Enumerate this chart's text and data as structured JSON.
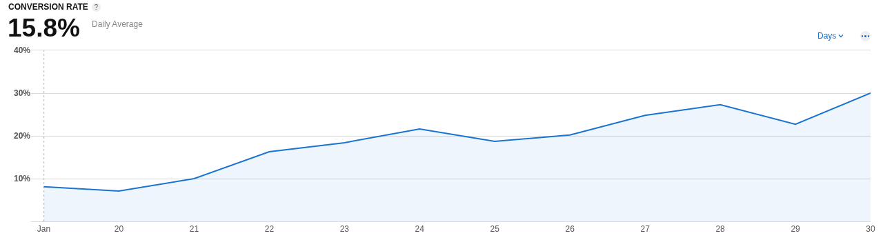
{
  "chart_data": {
    "type": "area",
    "title": "CONVERSION RATE",
    "annotations": [
      "15.8%",
      "Daily Average",
      "Days",
      "?"
    ],
    "categories": [
      "Jan",
      "20",
      "21",
      "22",
      "23",
      "24",
      "25",
      "26",
      "27",
      "28",
      "29",
      "30"
    ],
    "series": [
      {
        "color": "#1a73d0",
        "values": [
          8.1,
          7.1,
          10,
          16.3,
          18.4,
          21.6,
          18.7,
          20.2,
          24.8,
          27.3,
          22.7,
          30
        ]
      }
    ],
    "ylim": [
      0,
      40
    ],
    "yticks": [
      {
        "value": 0,
        "label": null
      },
      {
        "value": 10,
        "label": "10%"
      },
      {
        "value": 20,
        "label": "20%"
      },
      {
        "value": 30,
        "label": "30%"
      },
      {
        "value": 40,
        "label": "40%"
      }
    ],
    "grid": "y",
    "marker": "none",
    "line_style": "solid",
    "ref_lines": [
      {
        "axis": "x",
        "value": "Jan",
        "color": "#cccccc",
        "line_style": "dotted"
      }
    ]
  }
}
